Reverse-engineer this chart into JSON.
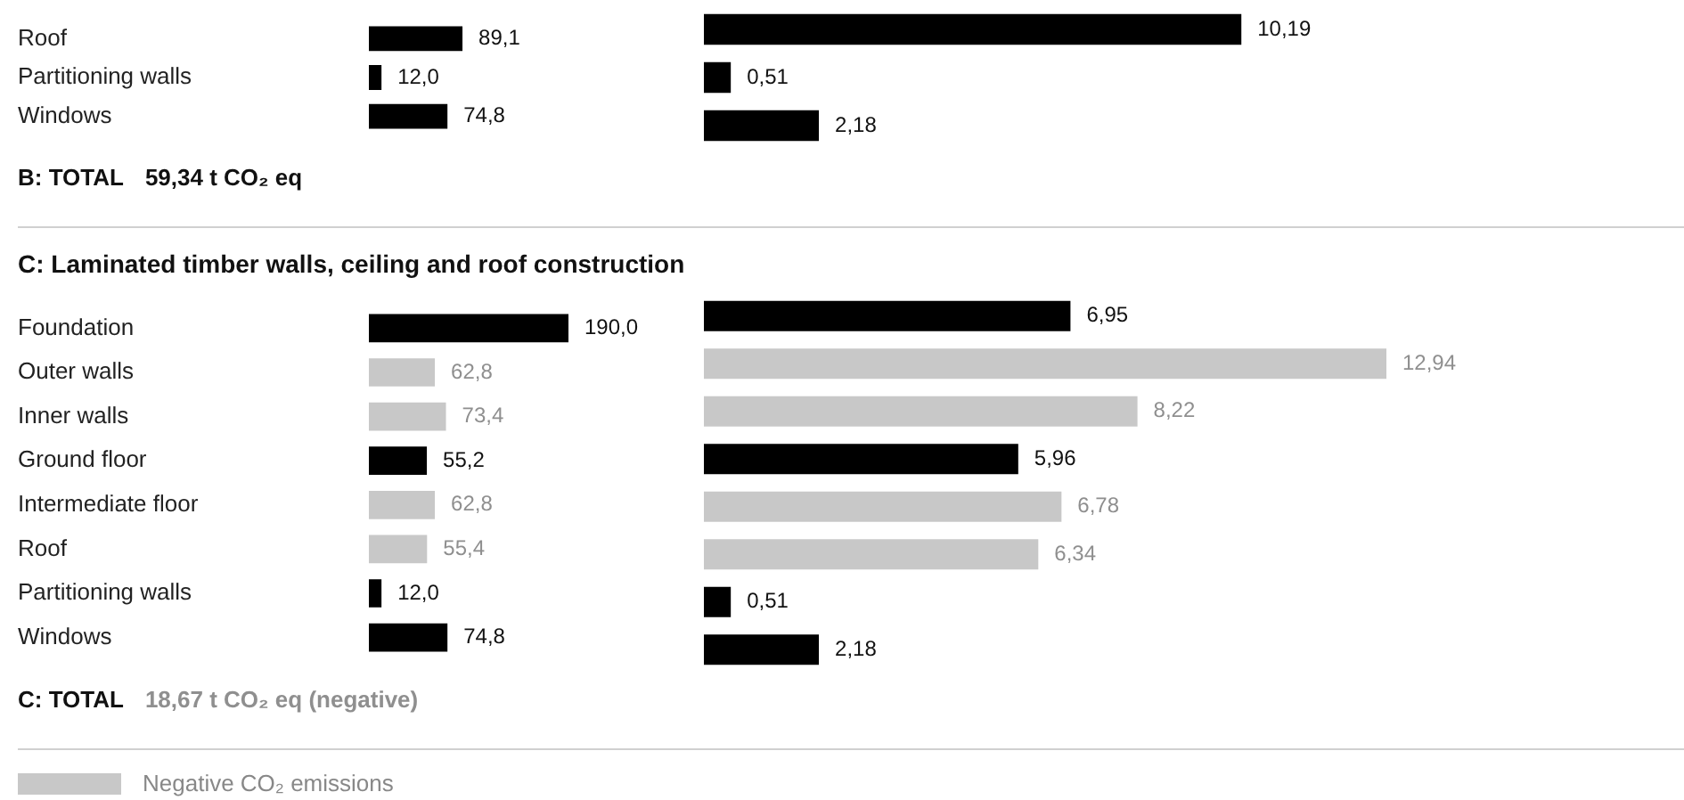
{
  "chart_data": [
    {
      "type": "bar",
      "orientation": "horizontal",
      "stacked": true,
      "tick_labels": "y",
      "categories": [
        "Roof",
        "Partitioning walls",
        "Windows"
      ],
      "series": [
        {
          "color": "#000000",
          "values": [
            89.1,
            12.0,
            74.8
          ],
          "value_labels": [
            "89,1",
            "12,0",
            "74,8"
          ]
        }
      ],
      "annotations": [
        "B: TOTAL",
        "59,34 t CO₂ eq"
      ]
    },
    {
      "type": "bar",
      "orientation": "horizontal",
      "stacked": true,
      "tick_labels": false,
      "categories": [
        null,
        null,
        null
      ],
      "series": [
        {
          "color": "#000000",
          "values": [
            10.19,
            0.51,
            2.18
          ],
          "value_labels": [
            "10,19",
            "0,51",
            "2,18"
          ]
        }
      ]
    },
    {
      "type": "bar",
      "orientation": "horizontal",
      "stacked": true,
      "tick_labels": "y",
      "title": "C: Laminated timber walls, ceiling and roof construction",
      "categories": [
        "Foundation",
        "Outer walls",
        "Inner walls",
        "Ground floor",
        "Intermediate floor",
        "Roof",
        "Partitioning walls",
        "Windows"
      ],
      "series": [
        {
          "color": "#000000",
          "values": [
            190.0,
            null,
            null,
            55.2,
            null,
            null,
            12.0,
            74.8
          ],
          "value_labels": [
            "190,0",
            null,
            null,
            "55,2",
            null,
            null,
            "12,0",
            "74,8"
          ]
        },
        {
          "name": "Negative CO₂ emissions",
          "color": "#c8c8c8",
          "values": [
            null,
            62.8,
            73.4,
            null,
            62.8,
            55.4,
            null,
            null
          ],
          "value_labels": [
            null,
            "62,8",
            "73,4",
            null,
            "62,8",
            "55,4",
            null,
            null
          ]
        }
      ],
      "legend": "bottom left",
      "annotations": [
        "C: TOTAL",
        "18,67 t CO₂ eq (negative)"
      ]
    },
    {
      "type": "bar",
      "orientation": "horizontal",
      "stacked": true,
      "tick_labels": false,
      "categories": [
        null,
        null,
        null,
        null,
        null,
        null,
        null,
        null
      ],
      "series": [
        {
          "color": "#000000",
          "values": [
            6.95,
            null,
            null,
            5.96,
            null,
            null,
            0.51,
            2.18
          ],
          "value_labels": [
            "6,95",
            null,
            null,
            "5,96",
            null,
            null,
            "0,51",
            "2,18"
          ]
        },
        {
          "color": "#c8c8c8",
          "values": [
            null,
            12.94,
            8.22,
            null,
            6.78,
            6.34,
            null,
            null
          ],
          "value_labels": [
            null,
            "12,94",
            "8,22",
            null,
            "6,78",
            "6,34",
            null,
            null
          ]
        }
      ]
    }
  ]
}
